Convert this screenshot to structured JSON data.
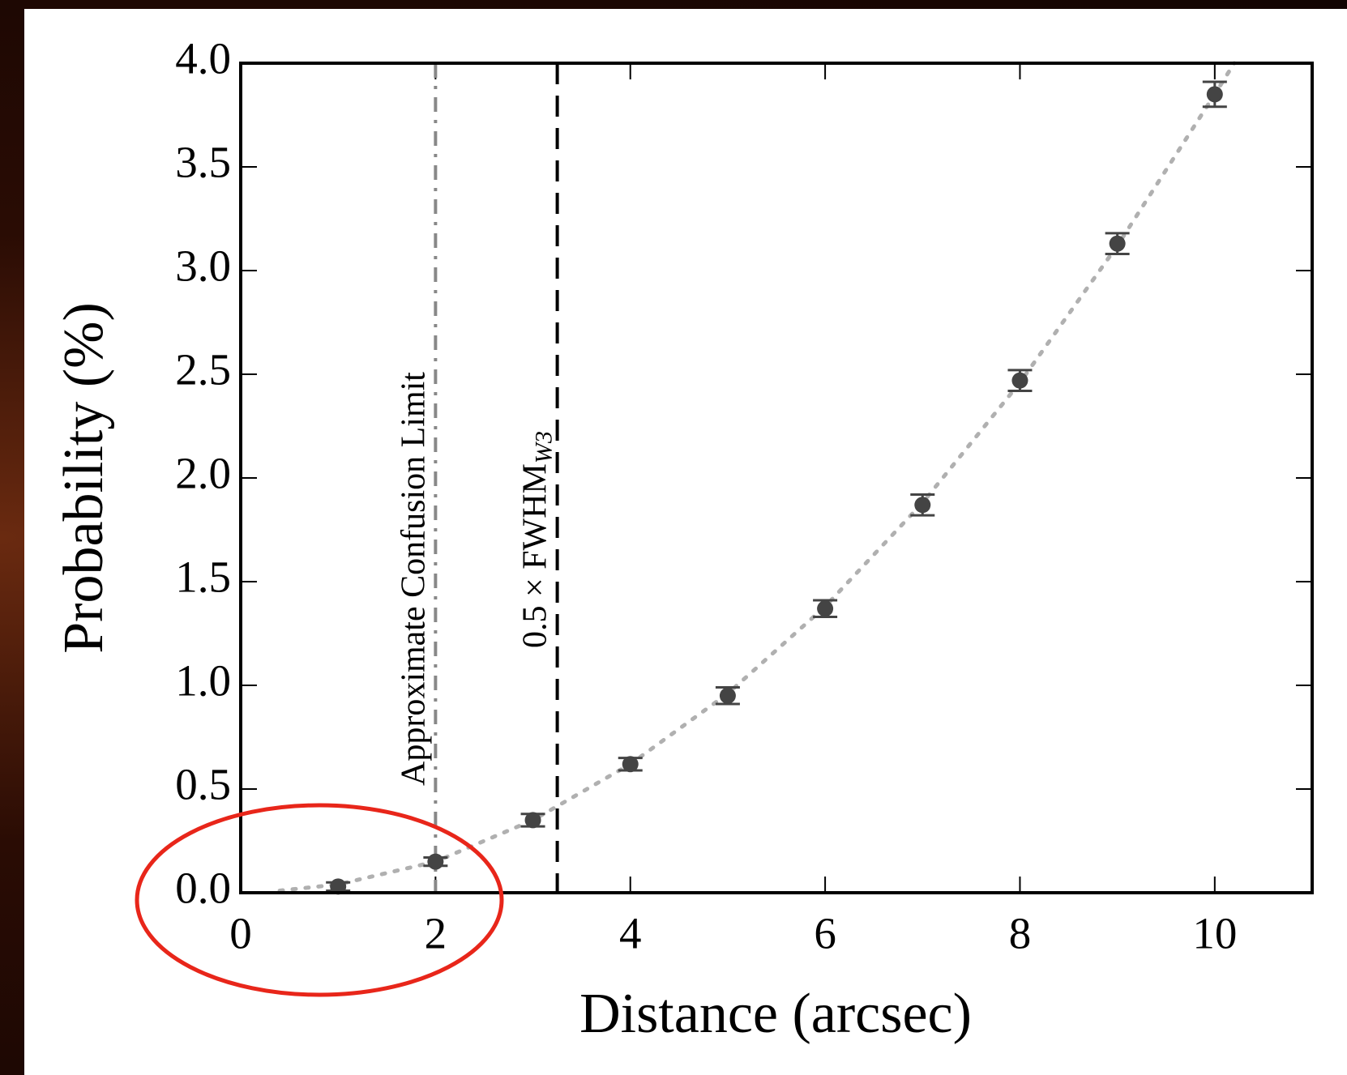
{
  "chart_data": {
    "type": "scatter",
    "x_label": "Distance (arcsec)",
    "y_label": "Probability (%)",
    "xlim": [
      0,
      11
    ],
    "ylim": [
      0,
      4
    ],
    "xticks": [
      0,
      2,
      4,
      6,
      8,
      10
    ],
    "yticks": [
      {
        "value": 0,
        "label": "0.0"
      },
      {
        "value": 0.5,
        "label": "0.5"
      },
      {
        "value": 1,
        "label": "1.0"
      },
      {
        "value": 1.5,
        "label": "1.5"
      },
      {
        "value": 2,
        "label": "2.0"
      },
      {
        "value": 2.5,
        "label": "2.5"
      },
      {
        "value": 3,
        "label": "3.0"
      },
      {
        "value": 3.5,
        "label": "3.5"
      },
      {
        "value": 4,
        "label": "4.0"
      }
    ],
    "series": [
      {
        "color": "#444444",
        "style": "points",
        "x": [
          1,
          2,
          3,
          4,
          5,
          6,
          7,
          8,
          9,
          10
        ],
        "values": [
          0.03,
          0.15,
          0.35,
          0.62,
          0.95,
          1.37,
          1.87,
          2.47,
          3.13,
          3.85
        ],
        "errors": [
          0.02,
          0.02,
          0.03,
          0.03,
          0.04,
          0.04,
          0.05,
          0.05,
          0.05,
          0.06
        ]
      },
      {
        "color": "#b0b0b0",
        "style": "dotted",
        "x": [
          0.4,
          1,
          2,
          3,
          4,
          5,
          6,
          7,
          8,
          9,
          10,
          10.2
        ],
        "values": [
          0.01,
          0.04,
          0.15,
          0.35,
          0.62,
          0.96,
          1.38,
          1.88,
          2.46,
          3.12,
          3.85,
          4.0
        ]
      }
    ],
    "vlines": [
      {
        "x": 2,
        "color": "#888888",
        "style": "dashdot",
        "label": "Approximate Confusion Limit"
      },
      {
        "x": 3.25,
        "color": "#000000",
        "style": "dashed",
        "label": "0.5 × FWHM",
        "label_sub": "W3"
      }
    ]
  }
}
